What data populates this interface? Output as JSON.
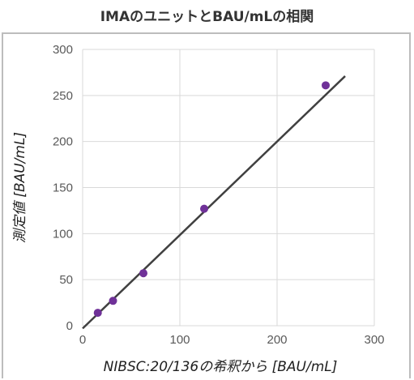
{
  "chart_data": {
    "type": "scatter",
    "title": "IMAのユニットとBAU/mLの相関",
    "xlabel": "NIBSC:20/136の希釈から  [BAU/mL]",
    "ylabel": "測定値  [BAU/mL]",
    "xlim": [
      0,
      300
    ],
    "ylim": [
      0,
      300
    ],
    "x_ticks": [
      "0",
      "100",
      "200",
      "300"
    ],
    "y_ticks": [
      "0",
      "50",
      "100",
      "150",
      "200",
      "250",
      "300"
    ],
    "grid": true,
    "points": [
      {
        "x": 15.6,
        "y": 14
      },
      {
        "x": 31.25,
        "y": 27
      },
      {
        "x": 62.5,
        "y": 57
      },
      {
        "x": 125,
        "y": 127
      },
      {
        "x": 250,
        "y": 261
      }
    ],
    "trendline": {
      "x": [
        0,
        270
      ],
      "y": [
        -3,
        271
      ]
    },
    "colors": {
      "points": "#6f3198",
      "line": "#404040",
      "grid": "#d9d9d9"
    }
  }
}
